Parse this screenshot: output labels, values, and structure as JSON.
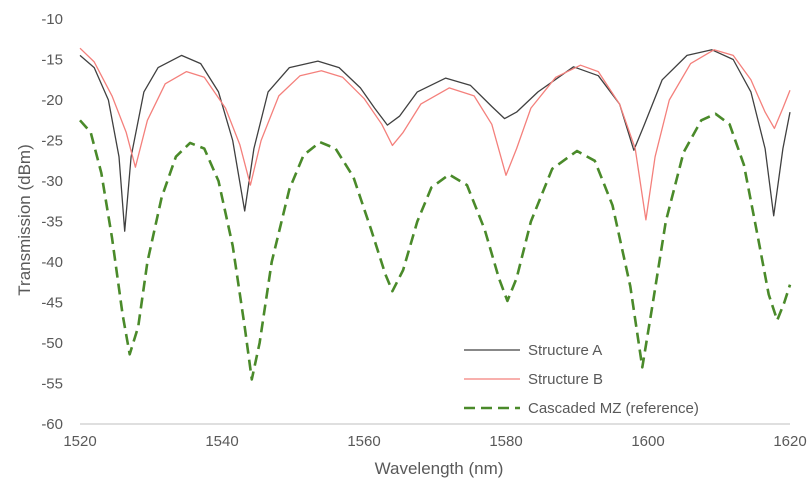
{
  "chart_data": {
    "type": "line",
    "title": "",
    "xlabel": "Wavelength (nm)",
    "ylabel": "Transmission (dBm)",
    "xlim": [
      1520,
      1620
    ],
    "ylim": [
      -60,
      -10
    ],
    "x_ticks": [
      1520,
      1540,
      1560,
      1580,
      1600,
      1620
    ],
    "y_ticks": [
      -10,
      -15,
      -20,
      -25,
      -30,
      -35,
      -40,
      -45,
      -50,
      -55,
      -60
    ],
    "grid": false,
    "legend_position": "bottom-right",
    "series": [
      {
        "name": "Structure A",
        "color": "#404040",
        "style": "solid",
        "points": [
          [
            1520,
            -14.5
          ],
          [
            1522,
            -16
          ],
          [
            1524,
            -20
          ],
          [
            1525.5,
            -27
          ],
          [
            1526.3,
            -36.2
          ],
          [
            1527.2,
            -27
          ],
          [
            1529,
            -19
          ],
          [
            1531,
            -16
          ],
          [
            1534.3,
            -14.5
          ],
          [
            1537,
            -15.5
          ],
          [
            1539.5,
            -19
          ],
          [
            1541.5,
            -25
          ],
          [
            1543.2,
            -33.7
          ],
          [
            1544.5,
            -26
          ],
          [
            1546.5,
            -19
          ],
          [
            1549.5,
            -16
          ],
          [
            1553.5,
            -15.2
          ],
          [
            1556.5,
            -16
          ],
          [
            1559.5,
            -18.5
          ],
          [
            1561.5,
            -21
          ],
          [
            1563.3,
            -23.1
          ],
          [
            1565,
            -22
          ],
          [
            1567.5,
            -19
          ],
          [
            1571.5,
            -17.3
          ],
          [
            1575,
            -18.2
          ],
          [
            1578,
            -20.8
          ],
          [
            1579.8,
            -22.3
          ],
          [
            1581.5,
            -21.5
          ],
          [
            1584.5,
            -19
          ],
          [
            1589.5,
            -15.9
          ],
          [
            1593,
            -17
          ],
          [
            1596,
            -20.5
          ],
          [
            1598,
            -26.2
          ],
          [
            1599.5,
            -23
          ],
          [
            1602,
            -17.5
          ],
          [
            1605.5,
            -14.5
          ],
          [
            1609,
            -13.8
          ],
          [
            1612,
            -15
          ],
          [
            1614.5,
            -19
          ],
          [
            1616.5,
            -26
          ],
          [
            1617.7,
            -34.3
          ],
          [
            1619,
            -26
          ],
          [
            1620,
            -21.5
          ]
        ]
      },
      {
        "name": "Structure B",
        "color": "#f4807c",
        "style": "solid",
        "points": [
          [
            1520,
            -13.6
          ],
          [
            1522,
            -15.3
          ],
          [
            1524.5,
            -19.5
          ],
          [
            1526.5,
            -24
          ],
          [
            1527.8,
            -28.3
          ],
          [
            1529.5,
            -22.5
          ],
          [
            1532,
            -18
          ],
          [
            1535,
            -16.5
          ],
          [
            1537.5,
            -17.2
          ],
          [
            1540.5,
            -21
          ],
          [
            1542.5,
            -25.5
          ],
          [
            1544,
            -30.5
          ],
          [
            1545.5,
            -25
          ],
          [
            1548,
            -19.5
          ],
          [
            1551,
            -17
          ],
          [
            1554,
            -16.4
          ],
          [
            1557,
            -17.2
          ],
          [
            1560,
            -19.8
          ],
          [
            1562.5,
            -23
          ],
          [
            1564,
            -25.6
          ],
          [
            1565.5,
            -24
          ],
          [
            1568,
            -20.5
          ],
          [
            1572,
            -18.5
          ],
          [
            1575.5,
            -19.5
          ],
          [
            1578,
            -23
          ],
          [
            1580,
            -29.3
          ],
          [
            1581.5,
            -26
          ],
          [
            1583.5,
            -21
          ],
          [
            1587,
            -17.2
          ],
          [
            1590.5,
            -15.7
          ],
          [
            1593,
            -16.5
          ],
          [
            1596,
            -20.5
          ],
          [
            1598.2,
            -26
          ],
          [
            1599.7,
            -34.8
          ],
          [
            1601,
            -27
          ],
          [
            1603,
            -20
          ],
          [
            1606,
            -15.5
          ],
          [
            1609.3,
            -13.8
          ],
          [
            1612,
            -14.5
          ],
          [
            1614.5,
            -17.5
          ],
          [
            1616.5,
            -21.5
          ],
          [
            1617.8,
            -23.5
          ],
          [
            1619,
            -21
          ],
          [
            1620,
            -18.8
          ]
        ]
      },
      {
        "name": "Cascaded MZ (reference)",
        "color": "#4a8a2a",
        "style": "dashed",
        "points": [
          [
            1520,
            -22.5
          ],
          [
            1521.5,
            -24
          ],
          [
            1523,
            -29
          ],
          [
            1524.5,
            -37
          ],
          [
            1526,
            -46.5
          ],
          [
            1527,
            -51.4
          ],
          [
            1528.2,
            -48
          ],
          [
            1529.5,
            -40
          ],
          [
            1531.5,
            -32
          ],
          [
            1533.5,
            -27
          ],
          [
            1535.5,
            -25.3
          ],
          [
            1537.5,
            -26
          ],
          [
            1539.5,
            -30
          ],
          [
            1541.5,
            -38
          ],
          [
            1543.2,
            -48
          ],
          [
            1544.2,
            -54.5
          ],
          [
            1545.3,
            -50
          ],
          [
            1547,
            -40
          ],
          [
            1549.5,
            -31
          ],
          [
            1551.5,
            -26.8
          ],
          [
            1553.8,
            -25.2
          ],
          [
            1556,
            -26
          ],
          [
            1558.5,
            -29.5
          ],
          [
            1561,
            -36
          ],
          [
            1563,
            -41.5
          ],
          [
            1564,
            -43.6
          ],
          [
            1565.5,
            -41
          ],
          [
            1567.5,
            -35
          ],
          [
            1569.5,
            -30.8
          ],
          [
            1572,
            -29.2
          ],
          [
            1574.5,
            -30.5
          ],
          [
            1577,
            -36
          ],
          [
            1579,
            -42
          ],
          [
            1580.2,
            -44.8
          ],
          [
            1581.5,
            -42
          ],
          [
            1583.5,
            -35
          ],
          [
            1586.5,
            -28.5
          ],
          [
            1590,
            -26.3
          ],
          [
            1592.5,
            -27.5
          ],
          [
            1595,
            -33
          ],
          [
            1597.5,
            -43
          ],
          [
            1599.2,
            -53
          ],
          [
            1600.5,
            -46
          ],
          [
            1602.5,
            -35
          ],
          [
            1605,
            -26.5
          ],
          [
            1607.5,
            -22.5
          ],
          [
            1609.5,
            -21.7
          ],
          [
            1611.5,
            -23
          ],
          [
            1613.5,
            -28
          ],
          [
            1615.5,
            -37
          ],
          [
            1617,
            -44
          ],
          [
            1618.2,
            -47.2
          ],
          [
            1619.2,
            -45
          ],
          [
            1620,
            -42.8
          ]
        ]
      }
    ]
  }
}
